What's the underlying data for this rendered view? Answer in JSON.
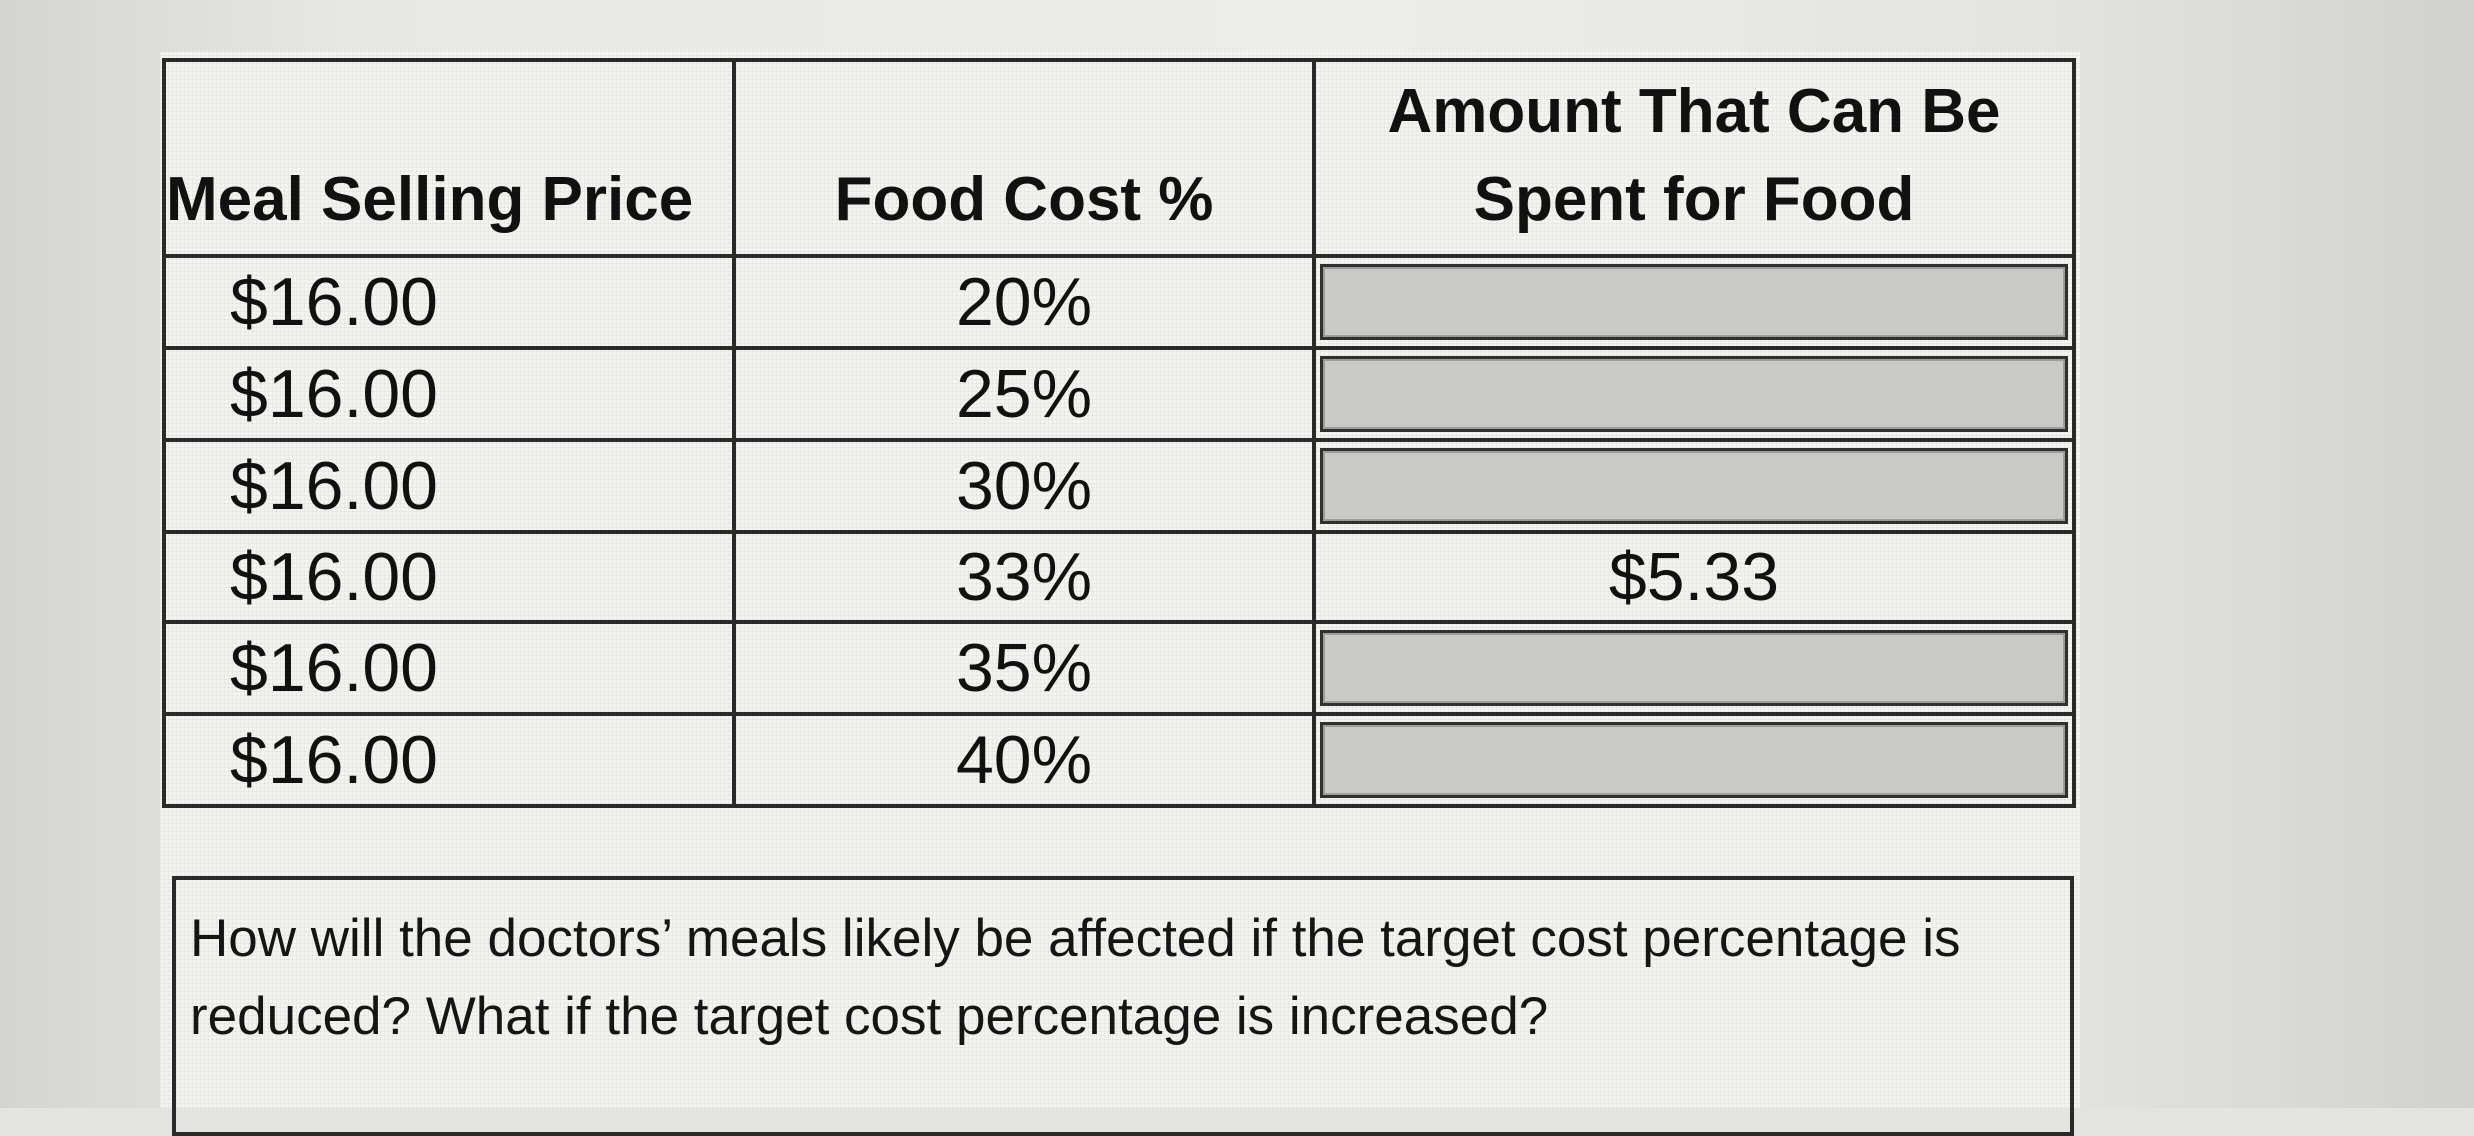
{
  "table": {
    "headers": {
      "price": "Meal Selling Price",
      "food_cost_pct": "Food Cost %",
      "amount": "Amount That Can Be Spent for Food"
    },
    "rows": [
      {
        "price": "$16.00",
        "pct": "20%",
        "amount": ""
      },
      {
        "price": "$16.00",
        "pct": "25%",
        "amount": ""
      },
      {
        "price": "$16.00",
        "pct": "30%",
        "amount": ""
      },
      {
        "price": "$16.00",
        "pct": "33%",
        "amount": "$5.33"
      },
      {
        "price": "$16.00",
        "pct": "35%",
        "amount": ""
      },
      {
        "price": "$16.00",
        "pct": "40%",
        "amount": ""
      }
    ]
  },
  "question": "How will the doctors’ meals likely be affected if the target cost percentage is reduced? What if the target cost percentage is increased?"
}
